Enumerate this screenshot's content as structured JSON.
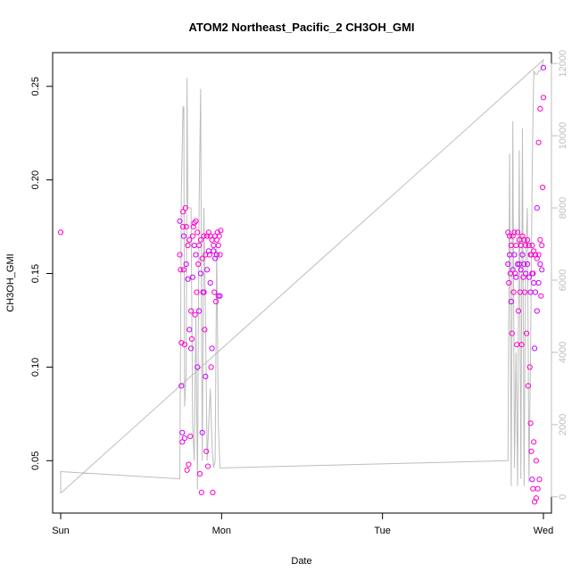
{
  "chart_data": {
    "type": "scatter",
    "title": "ATOM2 Northeast_Pacific_2 CH3OH_GMI",
    "xlabel": "Date",
    "ylabel": "CH3OH_GMI",
    "x_ticks": [
      {
        "value": 0,
        "label": "Sun"
      },
      {
        "value": 1,
        "label": "Mon"
      },
      {
        "value": 2,
        "label": "Tue"
      },
      {
        "value": 3,
        "label": "Wed"
      }
    ],
    "xlim": [
      -0.05,
      3.05
    ],
    "ylim": [
      0.022,
      0.268
    ],
    "y_ticks": [
      0.05,
      0.1,
      0.15,
      0.2,
      0.25
    ],
    "y2_ticks": [
      0,
      2000,
      4000,
      6000,
      8000,
      10000,
      12000
    ],
    "y2lim": [
      -450,
      12300
    ],
    "grid": false,
    "colors": {
      "points": "#ff00cc",
      "points_alt": "#cc00ff",
      "line": "#bdbdbd",
      "axes": "#000000",
      "right_axis": "#bdbdbd"
    },
    "series": [
      {
        "type": "scatter",
        "axis": "left",
        "x": [
          0.0,
          0.74,
          0.74,
          0.745,
          0.75,
          0.75,
          0.755,
          0.755,
          0.76,
          0.76,
          0.765,
          0.765,
          0.77,
          0.77,
          0.775,
          0.78,
          0.78,
          0.785,
          0.79,
          0.79,
          0.795,
          0.8,
          0.8,
          0.805,
          0.81,
          0.81,
          0.815,
          0.82,
          0.82,
          0.825,
          0.83,
          0.83,
          0.835,
          0.84,
          0.84,
          0.845,
          0.85,
          0.85,
          0.855,
          0.86,
          0.86,
          0.865,
          0.87,
          0.87,
          0.875,
          0.88,
          0.88,
          0.885,
          0.89,
          0.89,
          0.895,
          0.9,
          0.9,
          0.905,
          0.91,
          0.91,
          0.915,
          0.92,
          0.92,
          0.925,
          0.93,
          0.93,
          0.935,
          0.94,
          0.94,
          0.945,
          0.95,
          0.95,
          0.955,
          0.96,
          0.96,
          0.965,
          0.97,
          0.97,
          0.975,
          0.98,
          0.98,
          0.985,
          0.99,
          0.99,
          0.995,
          2.78,
          2.78,
          2.785,
          2.79,
          2.79,
          2.795,
          2.8,
          2.8,
          2.805,
          2.81,
          2.81,
          2.815,
          2.82,
          2.82,
          2.825,
          2.83,
          2.83,
          2.835,
          2.84,
          2.84,
          2.845,
          2.85,
          2.85,
          2.855,
          2.86,
          2.86,
          2.865,
          2.87,
          2.87,
          2.875,
          2.88,
          2.88,
          2.885,
          2.89,
          2.89,
          2.895,
          2.9,
          2.9,
          2.905,
          2.91,
          2.91,
          2.915,
          2.92,
          2.92,
          2.925,
          2.93,
          2.93,
          2.935,
          2.94,
          2.94,
          2.945,
          2.95,
          2.95,
          2.955,
          2.96,
          2.96,
          2.965,
          2.97,
          2.97,
          2.975,
          2.98,
          2.98,
          2.985,
          2.99,
          2.99,
          2.995,
          3.0,
          3.0,
          2.98,
          2.97,
          2.96,
          2.955,
          2.95,
          2.945,
          2.94,
          2.935,
          2.93,
          2.925,
          2.92
        ],
        "y": [
          0.172,
          0.178,
          0.16,
          0.152,
          0.09,
          0.113,
          0.06,
          0.065,
          0.175,
          0.183,
          0.17,
          0.152,
          0.112,
          0.062,
          0.185,
          0.175,
          0.155,
          0.045,
          0.165,
          0.147,
          0.048,
          0.168,
          0.12,
          0.063,
          0.13,
          0.11,
          0.115,
          0.17,
          0.148,
          0.175,
          0.177,
          0.165,
          0.128,
          0.178,
          0.16,
          0.14,
          0.172,
          0.1,
          0.155,
          0.165,
          0.13,
          0.043,
          0.168,
          0.15,
          0.033,
          0.158,
          0.065,
          0.14,
          0.17,
          0.14,
          0.12,
          0.16,
          0.095,
          0.055,
          0.17,
          0.152,
          0.047,
          0.172,
          0.162,
          0.16,
          0.17,
          0.145,
          0.1,
          0.168,
          0.11,
          0.033,
          0.165,
          0.162,
          0.14,
          0.17,
          0.158,
          0.135,
          0.168,
          0.16,
          0.172,
          0.165,
          0.138,
          0.17,
          0.16,
          0.138,
          0.173,
          0.172,
          0.155,
          0.145,
          0.17,
          0.16,
          0.15,
          0.165,
          0.135,
          0.118,
          0.17,
          0.152,
          0.14,
          0.172,
          0.16,
          0.15,
          0.165,
          0.148,
          0.112,
          0.172,
          0.155,
          0.13,
          0.168,
          0.155,
          0.14,
          0.165,
          0.152,
          0.112,
          0.17,
          0.16,
          0.148,
          0.168,
          0.155,
          0.14,
          0.165,
          0.15,
          0.118,
          0.168,
          0.155,
          0.09,
          0.165,
          0.148,
          0.1,
          0.16,
          0.14,
          0.055,
          0.165,
          0.15,
          0.035,
          0.162,
          0.145,
          0.028,
          0.16,
          0.14,
          0.03,
          0.158,
          0.13,
          0.035,
          0.16,
          0.145,
          0.04,
          0.168,
          0.155,
          0.138,
          0.165,
          0.152,
          0.196,
          0.244,
          0.26,
          0.238,
          0.22,
          0.185,
          0.05,
          0.16,
          0.11,
          0.06,
          0.15,
          0.04,
          0.16,
          0.07
        ]
      },
      {
        "type": "line",
        "axis": "right",
        "x": [
          0.0,
          0.0,
          0.74,
          0.75,
          0.76,
          0.765,
          0.77,
          0.78,
          0.785,
          0.79,
          0.8,
          0.81,
          0.82,
          0.83,
          0.84,
          0.85,
          0.86,
          0.87,
          0.875,
          0.88,
          0.89,
          0.9,
          0.91,
          0.92,
          0.93,
          0.94,
          0.95,
          0.96,
          0.97,
          0.98,
          0.99,
          1.0,
          2.78,
          2.79,
          2.8,
          2.81,
          2.82,
          2.83,
          2.84,
          2.85,
          2.86,
          2.87,
          2.88,
          2.89,
          2.9,
          2.91,
          2.92,
          2.93,
          2.94,
          2.95,
          2.96,
          2.97,
          2.98,
          2.99,
          3.0,
          0.0
        ],
        "y": [
          100,
          700,
          500,
          8500,
          10800,
          10800,
          2500,
          3500,
          11600,
          8000,
          8000,
          8000,
          2000,
          1000,
          5000,
          200,
          8000,
          11300,
          5000,
          1000,
          8000,
          5000,
          1000,
          2000,
          3000,
          1500,
          800,
          1000,
          7000,
          2000,
          800,
          800,
          1000,
          9500,
          300,
          10400,
          800,
          4000,
          300,
          9600,
          500,
          10200,
          300,
          6500,
          8000,
          400,
          4000,
          9000,
          11800,
          11700,
          11700,
          11800,
          11800,
          11900,
          12100,
          100
        ]
      }
    ]
  }
}
